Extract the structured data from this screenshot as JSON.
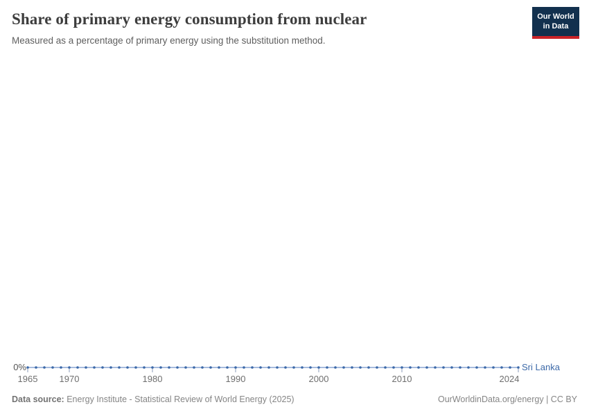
{
  "header": {
    "title": "Share of primary energy consumption from nuclear",
    "subtitle": "Measured as a percentage of primary energy using the substitution method.",
    "logo": {
      "line1": "Our World",
      "line2": "in Data"
    }
  },
  "colors": {
    "logo_background": "#12304e",
    "logo_accent_red": "#ca2328",
    "series_line": "#8aa6d3",
    "series_marker": "#3c69a8",
    "entity_label": "#3c69a8",
    "axis_tick": "#8b9bb8",
    "axis_label": "#6e6e6e",
    "title_text": "#3d3d3d",
    "subtitle_text": "#5e5e5e"
  },
  "chart_data": {
    "type": "line",
    "title": "Share of primary energy consumption from nuclear",
    "subtitle": "Measured as a percentage of primary energy using the substitution method.",
    "xlabel": "",
    "ylabel": "",
    "y_tick_labels": [
      "0%"
    ],
    "ylim": [
      0,
      0
    ],
    "grid": false,
    "legend_position": "end-of-line-label",
    "x_ticks": [
      1965,
      1970,
      1980,
      1990,
      2000,
      2010,
      2024
    ],
    "x": [
      1965,
      1966,
      1967,
      1968,
      1969,
      1970,
      1971,
      1972,
      1973,
      1974,
      1975,
      1976,
      1977,
      1978,
      1979,
      1980,
      1981,
      1982,
      1983,
      1984,
      1985,
      1986,
      1987,
      1988,
      1989,
      1990,
      1991,
      1992,
      1993,
      1994,
      1995,
      1996,
      1997,
      1998,
      1999,
      2000,
      2001,
      2002,
      2003,
      2004,
      2005,
      2006,
      2007,
      2008,
      2009,
      2010,
      2011,
      2012,
      2013,
      2014,
      2015,
      2016,
      2017,
      2018,
      2019,
      2020,
      2021,
      2022,
      2023,
      2024
    ],
    "series": [
      {
        "name": "Sri Lanka",
        "values": [
          0,
          0,
          0,
          0,
          0,
          0,
          0,
          0,
          0,
          0,
          0,
          0,
          0,
          0,
          0,
          0,
          0,
          0,
          0,
          0,
          0,
          0,
          0,
          0,
          0,
          0,
          0,
          0,
          0,
          0,
          0,
          0,
          0,
          0,
          0,
          0,
          0,
          0,
          0,
          0,
          0,
          0,
          0,
          0,
          0,
          0,
          0,
          0,
          0,
          0,
          0,
          0,
          0,
          0,
          0,
          0,
          0,
          0,
          0,
          0
        ]
      }
    ]
  },
  "axis": {
    "zero_label": "0%"
  },
  "footer": {
    "datasource_label": "Data source:",
    "datasource_value": " Energy Institute - Statistical Review of World Energy (2025)",
    "license": "OurWorldinData.org/energy | CC BY"
  }
}
